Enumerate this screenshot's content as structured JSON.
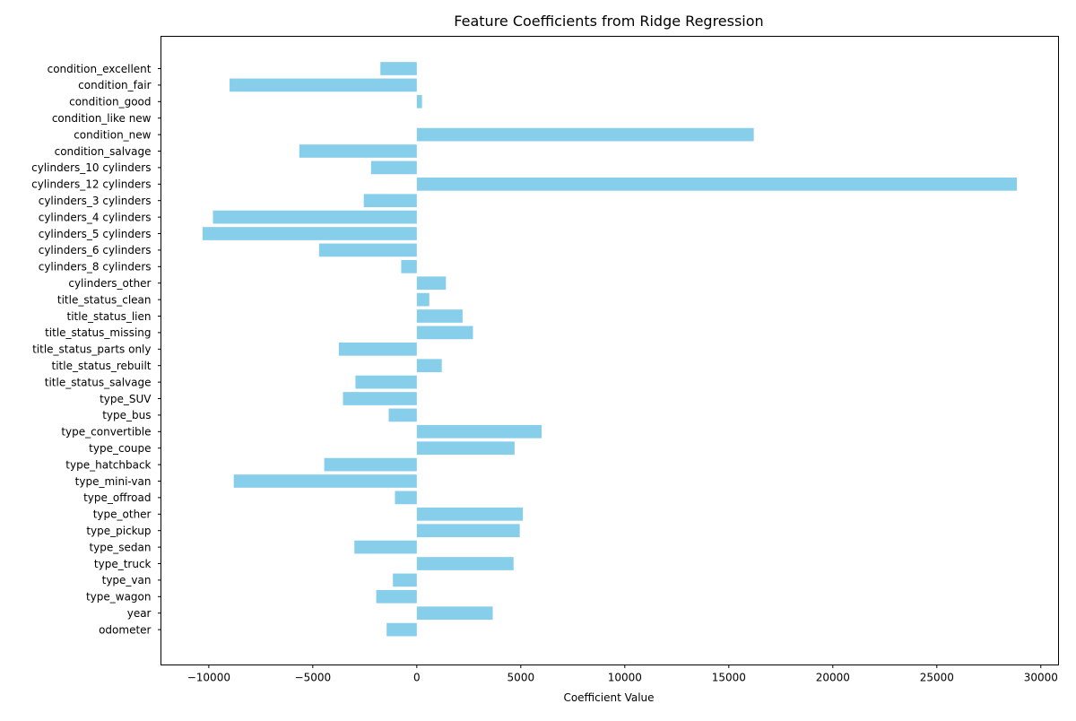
{
  "chart_data": {
    "type": "bar",
    "orientation": "horizontal",
    "title": "Feature Coefficients from Ridge Regression",
    "xlabel": "Coefficient Value",
    "ylabel": "",
    "xlim": [
      -12300,
      30850
    ],
    "xticks": [
      -10000,
      -5000,
      0,
      5000,
      10000,
      15000,
      20000,
      25000,
      30000
    ],
    "grid": false,
    "bar_color": "#87ceeb",
    "categories": [
      "condition_excellent",
      "condition_fair",
      "condition_good",
      "condition_like new",
      "condition_new",
      "condition_salvage",
      "cylinders_10 cylinders",
      "cylinders_12 cylinders",
      "cylinders_3 cylinders",
      "cylinders_4 cylinders",
      "cylinders_5 cylinders",
      "cylinders_6 cylinders",
      "cylinders_8 cylinders",
      "cylinders_other",
      "title_status_clean",
      "title_status_lien",
      "title_status_missing",
      "title_status_parts only",
      "title_status_rebuilt",
      "title_status_salvage",
      "type_SUV",
      "type_bus",
      "type_convertible",
      "type_coupe",
      "type_hatchback",
      "type_mini-van",
      "type_offroad",
      "type_other",
      "type_pickup",
      "type_sedan",
      "type_truck",
      "type_van",
      "type_wagon",
      "year",
      "odometer"
    ],
    "values": [
      -1750,
      -9000,
      250,
      0,
      16200,
      -5650,
      -2200,
      28850,
      -2550,
      -9800,
      -10300,
      -4700,
      -750,
      1400,
      600,
      2200,
      2700,
      -3750,
      1200,
      -2950,
      -3550,
      -1350,
      6000,
      4700,
      -4450,
      -8800,
      -1050,
      5100,
      4950,
      -3000,
      4650,
      -1150,
      -1950,
      3650,
      -1450
    ]
  }
}
